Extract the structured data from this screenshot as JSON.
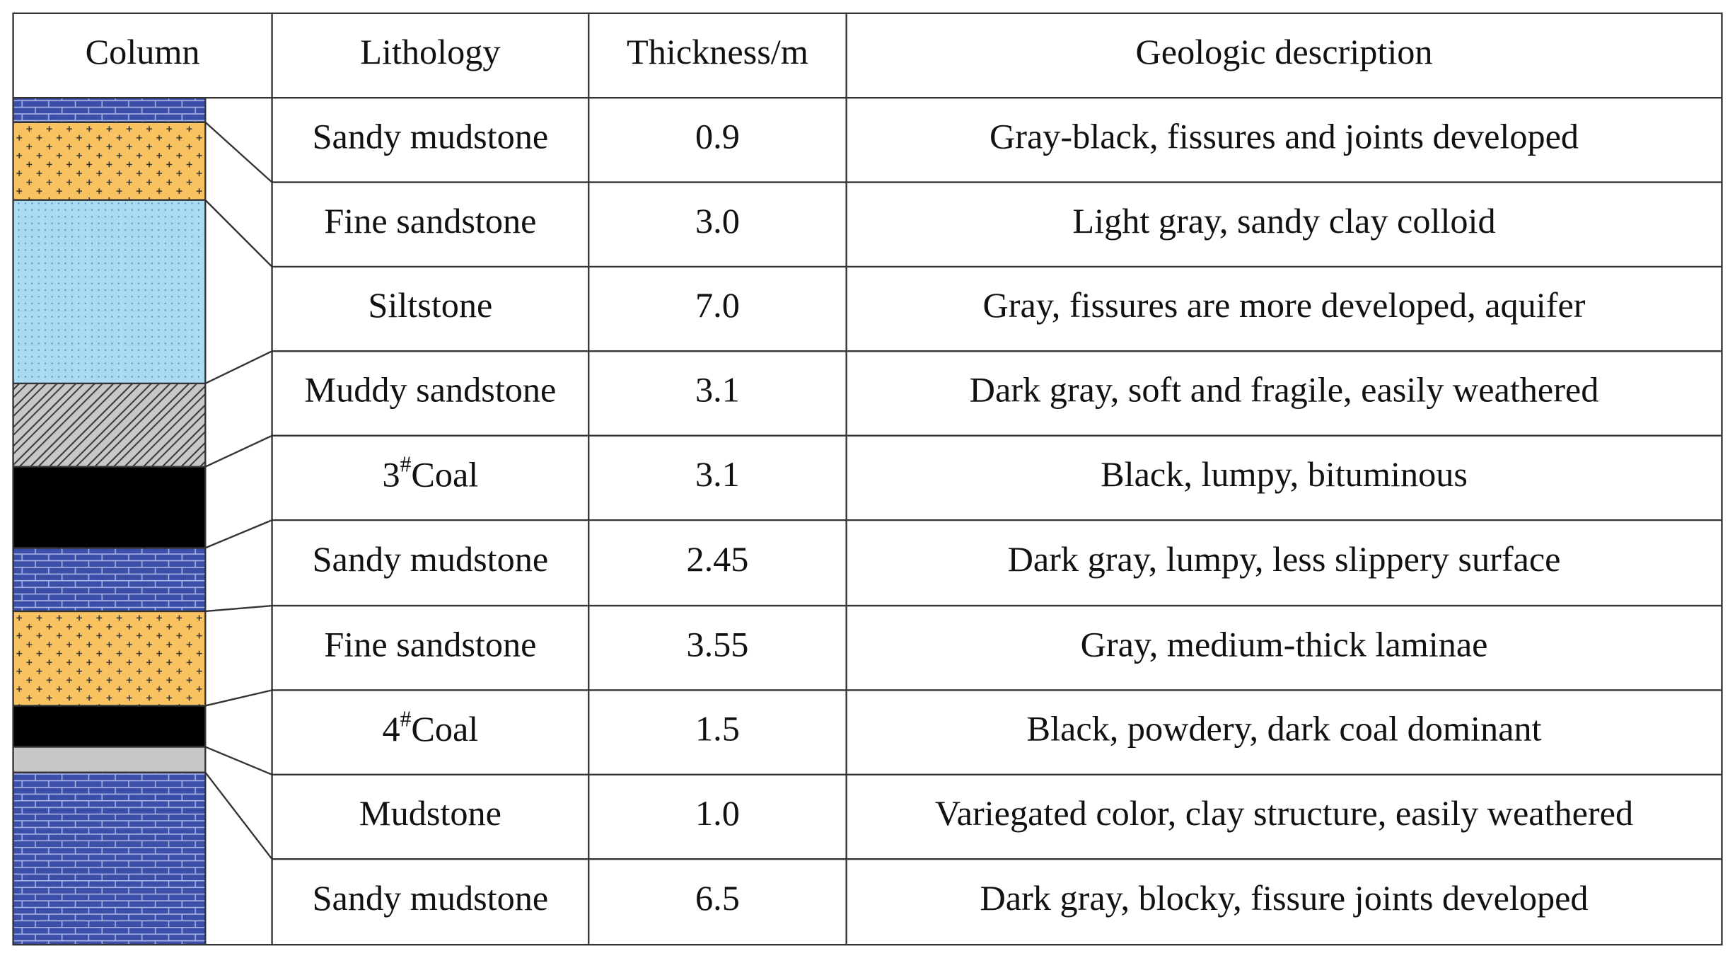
{
  "table": {
    "header": [
      "Column",
      "Lithology",
      "Thickness/m",
      "Geologic description"
    ],
    "rows": [
      {
        "lithology": "Sandy mudstone",
        "thickness": "0.9",
        "description": "Gray-black, fissures and joints developed"
      },
      {
        "lithology": "Fine sandstone",
        "thickness": "3.0",
        "description": "Light gray, sandy clay colloid"
      },
      {
        "lithology": "Siltstone",
        "thickness": "7.0",
        "description": "Gray, fissures are more developed, aquifer"
      },
      {
        "lithology": "Muddy sandstone",
        "thickness": "3.1",
        "description": "Dark gray, soft and fragile, easily weathered"
      },
      {
        "lithology": {
          "base": "3",
          "sup": "#",
          "text": "Coal"
        },
        "thickness": "3.1",
        "description": "Black, lumpy, bituminous"
      },
      {
        "lithology": "Sandy mudstone",
        "thickness": "2.45",
        "description": "Dark gray, lumpy, less slippery surface"
      },
      {
        "lithology": "Fine sandstone",
        "thickness": "3.55",
        "description": "Gray, medium-thick laminae"
      },
      {
        "lithology": {
          "base": "4",
          "sup": "#",
          "text": "Coal"
        },
        "thickness": "1.5",
        "description": "Black, powdery, dark coal dominant"
      },
      {
        "lithology": "Mudstone",
        "thickness": "1.0",
        "description": "Variegated color, clay structure, easily weathered"
      },
      {
        "lithology": "Sandy mudstone",
        "thickness": "6.5",
        "description": "Dark gray, blocky, fissure joints developed"
      }
    ]
  }
}
